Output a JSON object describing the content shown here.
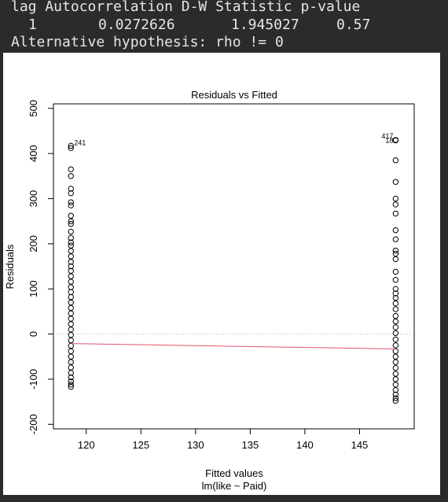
{
  "console": {
    "header": "lag Autocorrelation D-W Statistic p-value",
    "row": {
      "lag": "1",
      "autocorrelation": "0.0272626",
      "dw_statistic": "1.945027",
      "p_value": "0.57"
    },
    "alt_hypothesis": "Alternative hypothesis: rho != 0"
  },
  "chart_data": {
    "type": "scatter",
    "title": "Residuals vs Fitted",
    "xlabel": "Fitted values",
    "subtitle": "lm(like ~ Paid)",
    "ylabel": "Residuals",
    "xlim": [
      117,
      150
    ],
    "ylim": [
      -210,
      510
    ],
    "x_ticks": [
      120,
      125,
      130,
      135,
      140,
      145
    ],
    "y_ticks": [
      -200,
      -100,
      0,
      100,
      200,
      300,
      400,
      500
    ],
    "grid": false,
    "reference_line": {
      "y": 0,
      "style": "dotted",
      "color": "#bdbdbd"
    },
    "smooth_line": {
      "color": "#df536b",
      "points": [
        {
          "x": 118.6,
          "y": -21
        },
        {
          "x": 148.3,
          "y": -33
        }
      ]
    },
    "series": [
      {
        "points": [
          {
            "x": 118.6,
            "y": 417
          },
          {
            "x": 118.6,
            "y": 412
          },
          {
            "x": 118.6,
            "y": 365
          },
          {
            "x": 118.6,
            "y": 350
          },
          {
            "x": 118.6,
            "y": 322
          },
          {
            "x": 118.6,
            "y": 312
          },
          {
            "x": 118.6,
            "y": 292
          },
          {
            "x": 118.6,
            "y": 285
          },
          {
            "x": 118.6,
            "y": 262
          },
          {
            "x": 118.6,
            "y": 250
          },
          {
            "x": 118.6,
            "y": 244
          },
          {
            "x": 118.6,
            "y": 227
          },
          {
            "x": 118.6,
            "y": 213
          },
          {
            "x": 118.6,
            "y": 203
          },
          {
            "x": 118.6,
            "y": 196
          },
          {
            "x": 118.6,
            "y": 184
          },
          {
            "x": 118.6,
            "y": 172
          },
          {
            "x": 118.6,
            "y": 160
          },
          {
            "x": 118.6,
            "y": 150
          },
          {
            "x": 118.6,
            "y": 140
          },
          {
            "x": 118.6,
            "y": 128
          },
          {
            "x": 118.6,
            "y": 116
          },
          {
            "x": 118.6,
            "y": 104
          },
          {
            "x": 118.6,
            "y": 93
          },
          {
            "x": 118.6,
            "y": 82
          },
          {
            "x": 118.6,
            "y": 70
          },
          {
            "x": 118.6,
            "y": 58
          },
          {
            "x": 118.6,
            "y": 46
          },
          {
            "x": 118.6,
            "y": 34
          },
          {
            "x": 118.6,
            "y": 22
          },
          {
            "x": 118.6,
            "y": 10
          },
          {
            "x": 118.6,
            "y": -2
          },
          {
            "x": 118.6,
            "y": -14
          },
          {
            "x": 118.6,
            "y": -26
          },
          {
            "x": 118.6,
            "y": -38
          },
          {
            "x": 118.6,
            "y": -50
          },
          {
            "x": 118.6,
            "y": -62
          },
          {
            "x": 118.6,
            "y": -74
          },
          {
            "x": 118.6,
            "y": -86
          },
          {
            "x": 118.6,
            "y": -96
          },
          {
            "x": 118.6,
            "y": -105
          },
          {
            "x": 118.6,
            "y": -112
          },
          {
            "x": 118.6,
            "y": -117
          },
          {
            "x": 148.3,
            "y": 430
          },
          {
            "x": 148.3,
            "y": 429
          },
          {
            "x": 148.3,
            "y": 385
          },
          {
            "x": 148.3,
            "y": 337
          },
          {
            "x": 148.3,
            "y": 300
          },
          {
            "x": 148.3,
            "y": 287
          },
          {
            "x": 148.3,
            "y": 267
          },
          {
            "x": 148.3,
            "y": 230
          },
          {
            "x": 148.3,
            "y": 210
          },
          {
            "x": 148.3,
            "y": 185
          },
          {
            "x": 148.3,
            "y": 178
          },
          {
            "x": 148.3,
            "y": 166
          },
          {
            "x": 148.3,
            "y": 138
          },
          {
            "x": 148.3,
            "y": 120
          },
          {
            "x": 148.3,
            "y": 100
          },
          {
            "x": 148.3,
            "y": 90
          },
          {
            "x": 148.3,
            "y": 80
          },
          {
            "x": 148.3,
            "y": 68
          },
          {
            "x": 148.3,
            "y": 55
          },
          {
            "x": 148.3,
            "y": 40
          },
          {
            "x": 148.3,
            "y": 28
          },
          {
            "x": 148.3,
            "y": 15
          },
          {
            "x": 148.3,
            "y": 2
          },
          {
            "x": 148.3,
            "y": -12
          },
          {
            "x": 148.3,
            "y": -25
          },
          {
            "x": 148.3,
            "y": -38
          },
          {
            "x": 148.3,
            "y": -50
          },
          {
            "x": 148.3,
            "y": -62
          },
          {
            "x": 148.3,
            "y": -75
          },
          {
            "x": 148.3,
            "y": -88
          },
          {
            "x": 148.3,
            "y": -100
          },
          {
            "x": 148.3,
            "y": -112
          },
          {
            "x": 148.3,
            "y": -124
          },
          {
            "x": 148.3,
            "y": -134
          },
          {
            "x": 148.3,
            "y": -142
          },
          {
            "x": 148.3,
            "y": -148
          }
        ]
      }
    ],
    "annotations": [
      {
        "text": "241",
        "x": 118.6,
        "y": 417,
        "anchor": "right"
      },
      {
        "text": "417",
        "x": 148.3,
        "y": 430,
        "anchor": "left-above"
      },
      {
        "text": "18",
        "x": 148.3,
        "y": 429,
        "anchor": "left"
      }
    ]
  }
}
